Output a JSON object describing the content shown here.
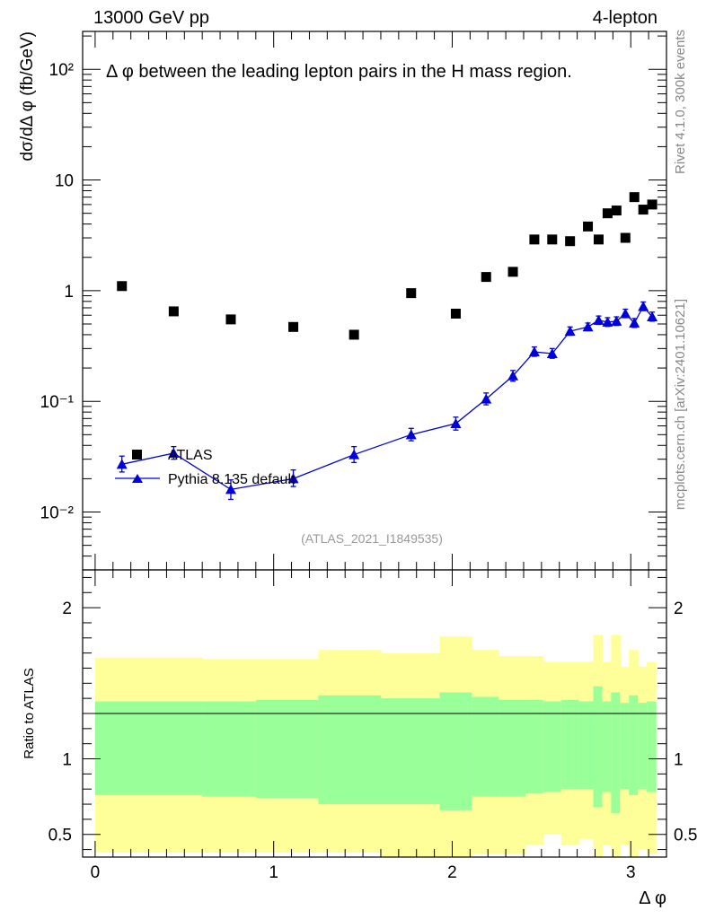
{
  "header": {
    "energy_label": "13000 GeV pp",
    "process_label": "4-lepton"
  },
  "side_labels": {
    "rivet": "Rivet 4.1.0,  300k events",
    "mcplots": "mcplots.cern.ch [arXiv:2401.10621]"
  },
  "analysis_id": "(ATLAS_2021_I1849535)",
  "chart_data": {
    "type": "scatter",
    "title": "Δ φ between the leading lepton pairs in the H mass region.",
    "xlabel": "Δ φ",
    "ylabel": "dσ/dΔ φ (fb/GeV)",
    "ratio_ylabel": "Ratio to ATLAS",
    "xlim": [
      -0.07,
      3.2
    ],
    "ylim": [
      0.003,
      220
    ],
    "yscale": "log",
    "ratio_ylim": [
      0.35,
      2.25
    ],
    "x_ticks": [
      "0",
      "1",
      "2",
      "3"
    ],
    "y_ticks": [
      "10⁻²",
      "10⁻¹",
      "1",
      "10",
      "10²"
    ],
    "ratio_ticks": [
      "0.5",
      "1",
      "2"
    ],
    "legend_position": "lower-left",
    "series": [
      {
        "name": "ATLAS",
        "marker": "square",
        "color": "#000000",
        "x": [
          0.15,
          0.44,
          0.76,
          1.11,
          1.45,
          1.77,
          2.02,
          2.19,
          2.34,
          2.46,
          2.56,
          2.66,
          2.76,
          2.82,
          2.87,
          2.92,
          2.97,
          3.02,
          3.07,
          3.12
        ],
        "y": [
          1.1,
          0.65,
          0.55,
          0.47,
          0.4,
          0.95,
          0.62,
          1.33,
          1.48,
          2.9,
          2.9,
          2.8,
          3.8,
          2.9,
          5.0,
          5.3,
          3.0,
          7.0,
          5.4,
          6.0
        ]
      },
      {
        "name": "Pythia 8.135 default",
        "marker": "triangle",
        "color": "#0000dd",
        "x": [
          0.15,
          0.44,
          0.76,
          1.11,
          1.45,
          1.77,
          2.02,
          2.19,
          2.34,
          2.46,
          2.56,
          2.66,
          2.76,
          2.82,
          2.87,
          2.92,
          2.97,
          3.02,
          3.07,
          3.12
        ],
        "y": [
          0.027,
          0.034,
          0.016,
          0.02,
          0.033,
          0.05,
          0.063,
          0.105,
          0.17,
          0.28,
          0.27,
          0.43,
          0.47,
          0.54,
          0.52,
          0.53,
          0.62,
          0.51,
          0.72,
          0.58
        ],
        "err_up": [
          0.005,
          0.005,
          0.0035,
          0.004,
          0.006,
          0.007,
          0.009,
          0.014,
          0.02,
          0.03,
          0.03,
          0.04,
          0.04,
          0.05,
          0.05,
          0.05,
          0.06,
          0.05,
          0.07,
          0.06
        ],
        "err_dn": [
          0.004,
          0.004,
          0.003,
          0.003,
          0.005,
          0.006,
          0.008,
          0.012,
          0.018,
          0.025,
          0.025,
          0.035,
          0.035,
          0.045,
          0.045,
          0.045,
          0.05,
          0.045,
          0.06,
          0.05
        ]
      }
    ],
    "ratio_bands": {
      "bins": [
        [
          0.0,
          0.3
        ],
        [
          0.3,
          0.6
        ],
        [
          0.6,
          0.9
        ],
        [
          0.9,
          1.25
        ],
        [
          1.25,
          1.6
        ],
        [
          1.6,
          1.93
        ],
        [
          1.93,
          2.11
        ],
        [
          2.11,
          2.26
        ],
        [
          2.26,
          2.41
        ],
        [
          2.41,
          2.51
        ],
        [
          2.51,
          2.61
        ],
        [
          2.61,
          2.71
        ],
        [
          2.71,
          2.79
        ],
        [
          2.79,
          2.84
        ],
        [
          2.84,
          2.89
        ],
        [
          2.89,
          2.94
        ],
        [
          2.94,
          2.99
        ],
        [
          2.99,
          3.04
        ],
        [
          3.04,
          3.09
        ],
        [
          3.09,
          3.14
        ]
      ],
      "green_lo": [
        0.76,
        0.76,
        0.75,
        0.74,
        0.7,
        0.7,
        0.66,
        0.75,
        0.75,
        0.77,
        0.78,
        0.8,
        0.8,
        0.68,
        0.78,
        0.64,
        0.8,
        0.76,
        0.8,
        0.78
      ],
      "green_hi": [
        1.38,
        1.38,
        1.38,
        1.39,
        1.42,
        1.4,
        1.44,
        1.41,
        1.39,
        1.39,
        1.38,
        1.39,
        1.38,
        1.48,
        1.38,
        1.44,
        1.37,
        1.42,
        1.37,
        1.38
      ],
      "yellow_lo": [
        0.38,
        0.38,
        0.38,
        0.38,
        0.38,
        0.35,
        0.35,
        0.37,
        0.37,
        0.43,
        0.5,
        0.43,
        0.47,
        0.35,
        0.43,
        0.35,
        0.43,
        0.35,
        0.4,
        0.37
      ],
      "yellow_hi": [
        1.67,
        1.67,
        1.66,
        1.66,
        1.72,
        1.7,
        1.81,
        1.72,
        1.68,
        1.68,
        1.64,
        1.64,
        1.64,
        1.82,
        1.64,
        1.82,
        1.61,
        1.72,
        1.61,
        1.64
      ],
      "green_color": "#99ff99",
      "yellow_color": "#ffff99"
    }
  }
}
